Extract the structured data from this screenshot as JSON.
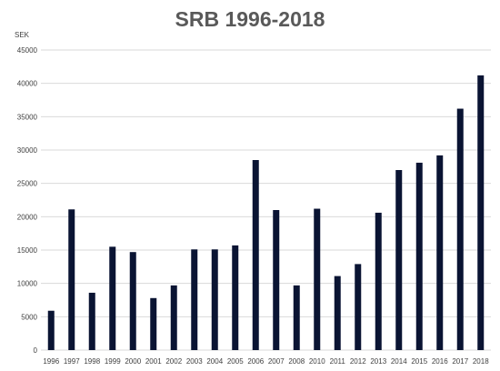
{
  "chart_data": {
    "type": "bar",
    "title": "SRB 1996-2018",
    "ylabel": "SEK",
    "xlabel": "",
    "ylim": [
      0,
      45000
    ],
    "yticks": [
      0,
      5000,
      10000,
      15000,
      20000,
      25000,
      30000,
      35000,
      40000,
      45000
    ],
    "grid": true,
    "bar_color": "#0a1433",
    "grid_color": "#d9d9d9",
    "categories": [
      "1996",
      "1997",
      "1998",
      "1999",
      "2000",
      "2001",
      "2002",
      "2003",
      "2004",
      "2005",
      "2006",
      "2007",
      "2008",
      "2010",
      "2011",
      "2012",
      "2013",
      "2014",
      "2015",
      "2016",
      "2017",
      "2018"
    ],
    "values": [
      5900,
      21100,
      8600,
      15500,
      14700,
      7800,
      9700,
      15100,
      15100,
      15700,
      28500,
      21000,
      9700,
      21200,
      11100,
      12900,
      20600,
      27000,
      28100,
      29200,
      36200,
      41200
    ]
  }
}
